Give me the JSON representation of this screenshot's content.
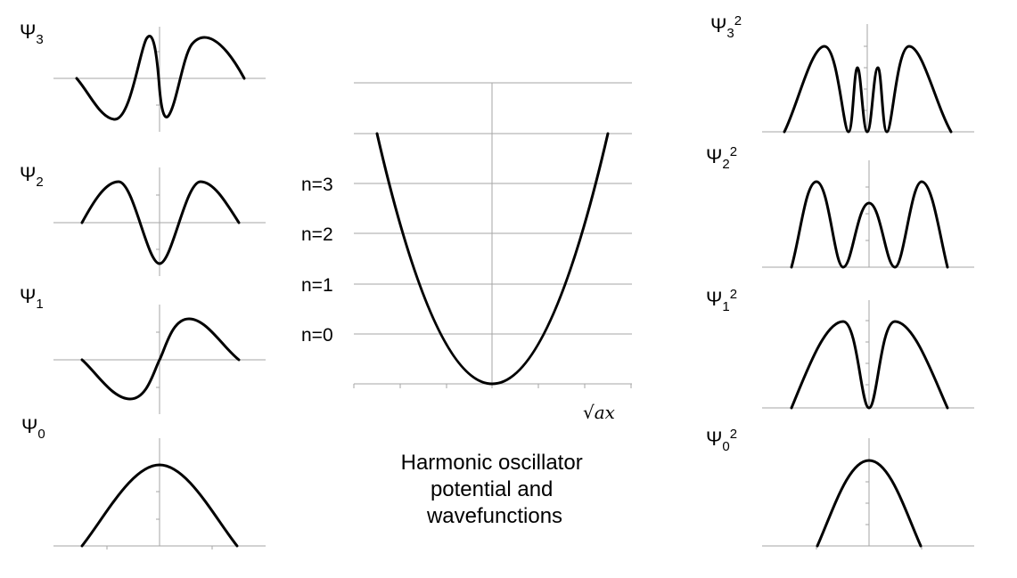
{
  "wavefunctions": [
    {
      "id": "psi3",
      "label": {
        "base": "Ψ",
        "sub": "3"
      }
    },
    {
      "id": "psi2",
      "label": {
        "base": "Ψ",
        "sub": "2"
      }
    },
    {
      "id": "psi1",
      "label": {
        "base": "Ψ",
        "sub": "1"
      }
    },
    {
      "id": "psi0",
      "label": {
        "base": "Ψ",
        "sub": "0"
      }
    }
  ],
  "probability_densities": [
    {
      "id": "psi3sq",
      "label": {
        "base": "Ψ",
        "sub": "3",
        "sup": "2"
      }
    },
    {
      "id": "psi2sq",
      "label": {
        "base": "Ψ",
        "sub": "2",
        "sup": "2"
      }
    },
    {
      "id": "psi1sq",
      "label": {
        "base": "Ψ",
        "sub": "1",
        "sup": "2"
      }
    },
    {
      "id": "psi0sq",
      "label": {
        "base": "Ψ",
        "sub": "0",
        "sup": "2"
      }
    }
  ],
  "potential": {
    "levels": [
      "n=3",
      "n=2",
      "n=1",
      "n=0"
    ],
    "x_axis_label": "√ax"
  },
  "caption": [
    "Harmonic oscillator",
    "potential and",
    "wavefunctions"
  ],
  "colors": {
    "curve": "#000000",
    "axis": "#a6a6a6",
    "background": "#ffffff"
  }
}
